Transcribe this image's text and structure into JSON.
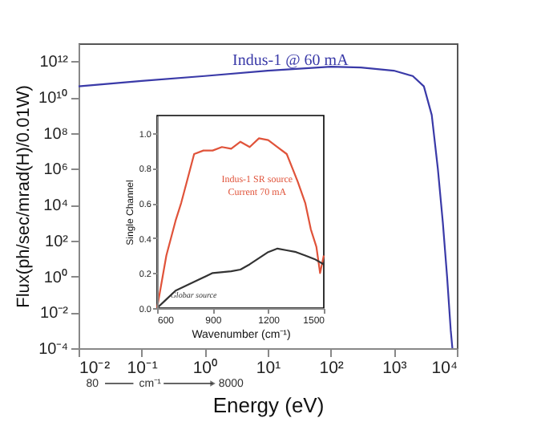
{
  "chart_data": [
    {
      "type": "line",
      "xlabel": "Energy (eV)",
      "ylabel": "Flux(ph/sec/mrad(H)/0.01W)",
      "log": "xy",
      "grid": false,
      "x": [
        0.01,
        0.1,
        1,
        10,
        100,
        300,
        1000,
        2000,
        3000,
        4000,
        5000,
        6000,
        7000,
        8000,
        8500
      ],
      "series": [
        {
          "name": "Indus-1 @ 60 mA",
          "color": "#3a3aa8",
          "values": [
            40000000000.0,
            80000000000.0,
            150000000000.0,
            300000000000.0,
            500000000000.0,
            450000000000.0,
            300000000000.0,
            150000000000.0,
            40000000000.0,
            1000000000.0,
            1000000.0,
            1000.0,
            1,
            0.001,
            0.0001
          ]
        }
      ],
      "xlim": [
        0.01,
        10000
      ],
      "ylim": [
        0.0001,
        10000000000000.0
      ],
      "xticks": [
        {
          "value": 0.01,
          "label": "10⁻²"
        },
        {
          "value": 0.1,
          "label": "10⁻¹"
        },
        {
          "value": 1,
          "label": "10⁰"
        },
        {
          "value": 10,
          "label": "10¹"
        },
        {
          "value": 100,
          "label": "10²"
        },
        {
          "value": 1000,
          "label": "10³"
        },
        {
          "value": 10000,
          "label": "10⁴"
        }
      ],
      "yticks": [
        {
          "value": 0.0001,
          "label": "10⁻⁴"
        },
        {
          "value": 0.01,
          "label": "10⁻²"
        },
        {
          "value": 1,
          "label": "10⁰"
        },
        {
          "value": 100,
          "label": "10²"
        },
        {
          "value": 10000,
          "label": "10⁴"
        },
        {
          "value": 1000000,
          "label": "10⁶"
        },
        {
          "value": 100000000,
          "label": "10⁸"
        },
        {
          "value": 10000000000,
          "label": "10¹⁰"
        },
        {
          "value": 1000000000000,
          "label": "10¹²"
        }
      ],
      "annotations": [
        "80",
        "cm⁻¹",
        "8000"
      ]
    },
    {
      "type": "line",
      "xlabel": "Wavenumber (cm⁻¹)",
      "ylabel": "Single Channel",
      "grid": false,
      "series": [
        {
          "name": "Indus-1 SR source\nCurrent 70 mA",
          "color": "#e0533a",
          "x": [
            600,
            650,
            700,
            730,
            760,
            800,
            850,
            900,
            950,
            1000,
            1050,
            1100,
            1150,
            1200,
            1250,
            1300,
            1330,
            1360,
            1400,
            1430,
            1460,
            1480,
            1500
          ],
          "values": [
            0.0,
            0.3,
            0.5,
            0.6,
            0.72,
            0.88,
            0.9,
            0.9,
            0.92,
            0.91,
            0.95,
            0.92,
            0.97,
            0.96,
            0.92,
            0.88,
            0.8,
            0.72,
            0.6,
            0.45,
            0.35,
            0.2,
            0.3
          ]
        },
        {
          "name": "Globar source",
          "color": "#333333",
          "x": [
            600,
            650,
            700,
            800,
            900,
            1000,
            1050,
            1100,
            1200,
            1250,
            1300,
            1350,
            1400,
            1450,
            1500
          ],
          "values": [
            0.0,
            0.05,
            0.1,
            0.15,
            0.2,
            0.21,
            0.22,
            0.25,
            0.32,
            0.34,
            0.33,
            0.32,
            0.3,
            0.28,
            0.25
          ]
        }
      ],
      "xlim": [
        600,
        1500
      ],
      "ylim": [
        0,
        1.1
      ],
      "xticks": [
        600,
        900,
        1200,
        1500
      ],
      "yticks": [
        {
          "value": 0,
          "label": "0.0"
        },
        0.2,
        0.4,
        0.6,
        0.8,
        {
          "value": 1,
          "label": "1.0"
        }
      ]
    }
  ]
}
